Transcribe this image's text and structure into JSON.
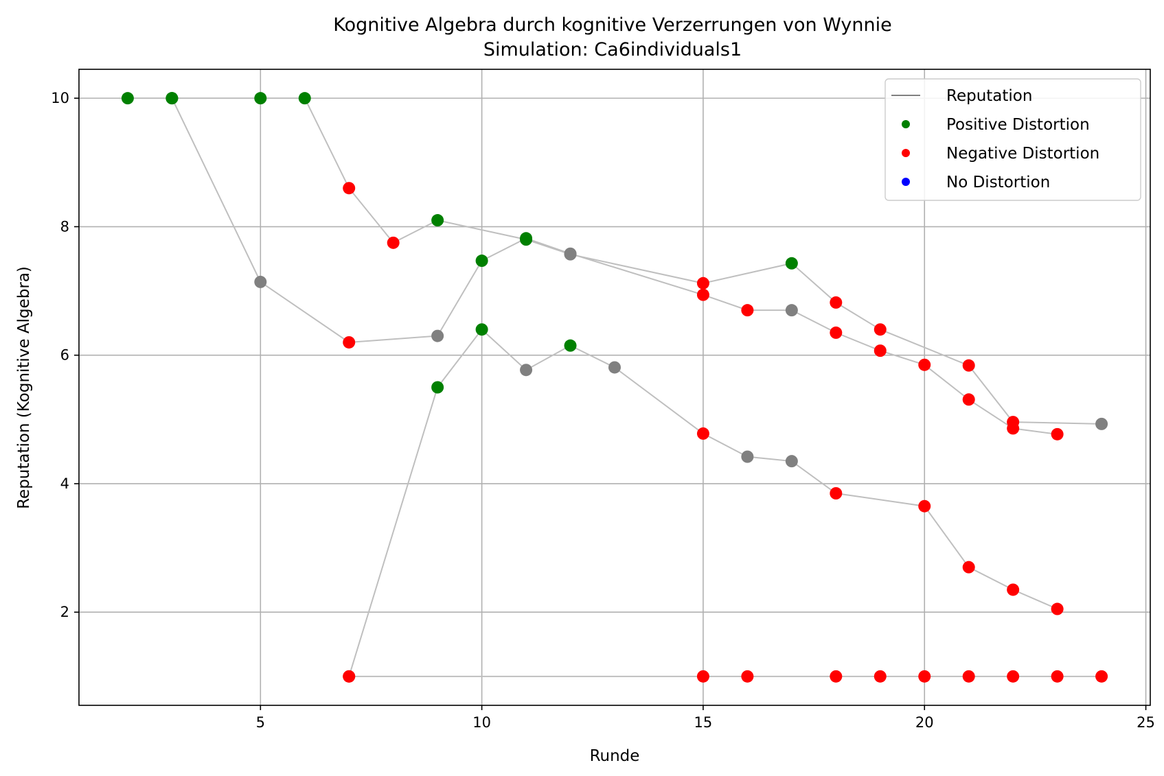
{
  "chart_data": {
    "type": "scatter",
    "title": "Kognitive Algebra durch kognitive Verzerrungen von Wynnie",
    "subtitle": "Simulation: Ca6individuals1",
    "xlabel": "Runde",
    "ylabel": "Reputation (Kognitive Algebra)",
    "xlim": [
      0.9,
      25.1
    ],
    "ylim": [
      0.55,
      10.45
    ],
    "x_ticks": [
      5,
      10,
      15,
      20,
      25
    ],
    "y_ticks": [
      2,
      4,
      6,
      8,
      10
    ],
    "grid": true,
    "legend_position": "top-right",
    "legend": [
      {
        "label": "Reputation",
        "kind": "line",
        "color": "#808080"
      },
      {
        "label": "Positive Distortion",
        "kind": "dot",
        "color": "#008000"
      },
      {
        "label": "Negative Distortion",
        "kind": "dot",
        "color": "#ff0000"
      },
      {
        "label": "No Distortion",
        "kind": "dot",
        "color": "#0000ff"
      }
    ],
    "colors": {
      "positive": "#008000",
      "negative": "#ff0000",
      "none": "#808080",
      "line": "#bfbfbf"
    },
    "series": [
      {
        "points": [
          {
            "x": 2,
            "y": 10,
            "d": "positive"
          },
          {
            "x": 3,
            "y": 10,
            "d": "positive"
          },
          {
            "x": 5,
            "y": 10,
            "d": "positive"
          },
          {
            "x": 6,
            "y": 10,
            "d": "positive"
          },
          {
            "x": 7,
            "y": 8.6,
            "d": "negative"
          },
          {
            "x": 8,
            "y": 7.75,
            "d": "negative"
          },
          {
            "x": 9,
            "y": 8.1,
            "d": "positive"
          },
          {
            "x": 11,
            "y": 7.8,
            "d": "positive"
          },
          {
            "x": 12,
            "y": 7.57,
            "d": "none"
          },
          {
            "x": 15,
            "y": 7.12,
            "d": "negative"
          },
          {
            "x": 17,
            "y": 7.43,
            "d": "positive"
          },
          {
            "x": 18,
            "y": 6.82,
            "d": "negative"
          },
          {
            "x": 19,
            "y": 6.4,
            "d": "negative"
          },
          {
            "x": 21,
            "y": 5.84,
            "d": "negative"
          },
          {
            "x": 22,
            "y": 4.96,
            "d": "negative"
          },
          {
            "x": 24,
            "y": 4.93,
            "d": "none"
          }
        ]
      },
      {
        "points": [
          {
            "x": 3,
            "y": 10,
            "d": "positive"
          },
          {
            "x": 5,
            "y": 7.14,
            "d": "none"
          },
          {
            "x": 7,
            "y": 6.2,
            "d": "negative"
          },
          {
            "x": 9,
            "y": 6.3,
            "d": "none"
          },
          {
            "x": 10,
            "y": 7.47,
            "d": "positive"
          },
          {
            "x": 11,
            "y": 7.82,
            "d": "positive"
          },
          {
            "x": 12,
            "y": 7.58,
            "d": "none"
          },
          {
            "x": 15,
            "y": 6.94,
            "d": "negative"
          },
          {
            "x": 16,
            "y": 6.7,
            "d": "negative"
          },
          {
            "x": 17,
            "y": 6.7,
            "d": "none"
          },
          {
            "x": 18,
            "y": 6.35,
            "d": "negative"
          },
          {
            "x": 19,
            "y": 6.07,
            "d": "negative"
          },
          {
            "x": 20,
            "y": 5.85,
            "d": "negative"
          },
          {
            "x": 21,
            "y": 5.31,
            "d": "negative"
          },
          {
            "x": 22,
            "y": 4.86,
            "d": "negative"
          },
          {
            "x": 23,
            "y": 4.77,
            "d": "negative"
          }
        ]
      },
      {
        "points": [
          {
            "x": 7,
            "y": 1,
            "d": "negative"
          },
          {
            "x": 9,
            "y": 5.5,
            "d": "positive"
          },
          {
            "x": 10,
            "y": 6.4,
            "d": "positive"
          },
          {
            "x": 11,
            "y": 5.77,
            "d": "none"
          },
          {
            "x": 12,
            "y": 6.15,
            "d": "positive"
          },
          {
            "x": 13,
            "y": 5.81,
            "d": "none"
          },
          {
            "x": 15,
            "y": 4.78,
            "d": "negative"
          },
          {
            "x": 16,
            "y": 4.42,
            "d": "none"
          },
          {
            "x": 17,
            "y": 4.35,
            "d": "none"
          },
          {
            "x": 18,
            "y": 3.85,
            "d": "negative"
          },
          {
            "x": 20,
            "y": 3.65,
            "d": "negative"
          },
          {
            "x": 21,
            "y": 2.7,
            "d": "negative"
          },
          {
            "x": 22,
            "y": 2.35,
            "d": "negative"
          },
          {
            "x": 23,
            "y": 2.05,
            "d": "negative"
          }
        ]
      },
      {
        "points": [
          {
            "x": 7,
            "y": 1,
            "d": "negative"
          },
          {
            "x": 15,
            "y": 1,
            "d": "negative"
          },
          {
            "x": 16,
            "y": 1,
            "d": "negative"
          },
          {
            "x": 18,
            "y": 1,
            "d": "negative"
          },
          {
            "x": 19,
            "y": 1,
            "d": "negative"
          },
          {
            "x": 20,
            "y": 1,
            "d": "negative"
          },
          {
            "x": 21,
            "y": 1,
            "d": "negative"
          },
          {
            "x": 22,
            "y": 1,
            "d": "negative"
          },
          {
            "x": 23,
            "y": 1,
            "d": "negative"
          },
          {
            "x": 24,
            "y": 1,
            "d": "negative"
          }
        ]
      }
    ]
  }
}
